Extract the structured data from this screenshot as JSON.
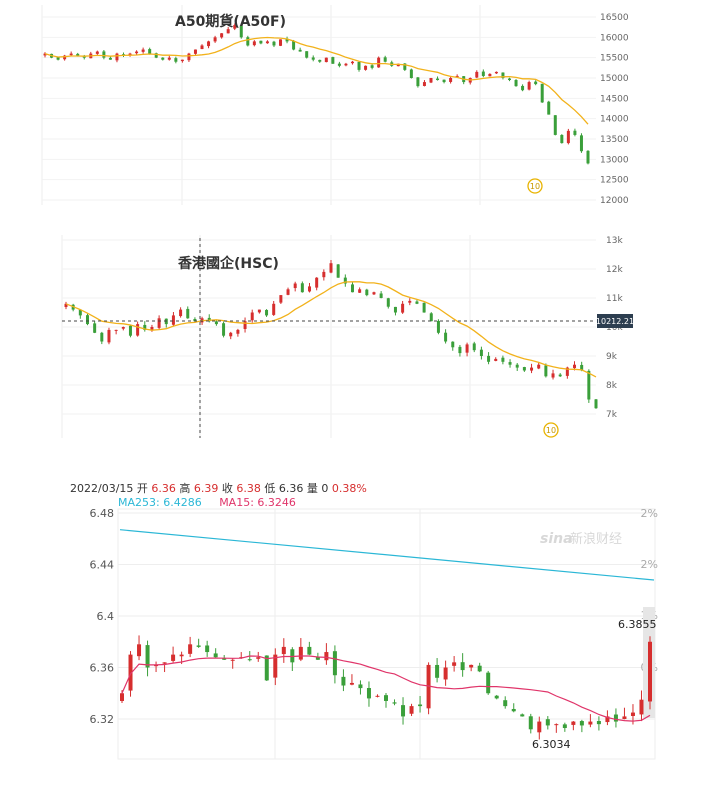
{
  "chart_data": [
    {
      "type": "candlestick",
      "title": "A50期貨(A50F)",
      "y_ticks": [
        "16500",
        "16000",
        "15500",
        "15000",
        "14500",
        "14000",
        "13500",
        "13000",
        "12500",
        "12000"
      ],
      "ylim": [
        12000,
        16500
      ],
      "ma_period_badge": "10",
      "series": [
        {
          "name": "close",
          "values": [
            15600,
            15500,
            15450,
            15550,
            15600,
            15550,
            15500,
            15600,
            15650,
            15500,
            15450,
            15600,
            15550,
            15600,
            15650,
            15700,
            15600,
            15500,
            15450,
            15500,
            15400,
            15450,
            15600,
            15700,
            15800,
            15900,
            16000,
            16100,
            16200,
            16300,
            16000,
            15800,
            15900,
            15850,
            15900,
            15800,
            15950,
            15900,
            15700,
            15650,
            15500,
            15450,
            15400,
            15500,
            15350,
            15300,
            15350,
            15400,
            15200,
            15300,
            15250,
            15500,
            15400,
            15300,
            15350,
            15200,
            15000,
            14800,
            14900,
            15000,
            14950,
            14900,
            15000,
            15050,
            14900,
            15000,
            15150,
            15050,
            15100,
            15150,
            15000,
            14950,
            14800,
            14700,
            14900,
            14850,
            14400,
            14100,
            13600,
            13400,
            13700,
            13600,
            13200,
            12900
          ]
        }
      ]
    },
    {
      "type": "candlestick",
      "title": "香港國企(HSC)",
      "y_ticks": [
        "13k",
        "12k",
        "11k",
        "10k",
        "9k",
        "8k",
        "7k"
      ],
      "ylim": [
        6500,
        13000
      ],
      "crosshair_value": "10212.21",
      "ma_period_badge": "10",
      "series": [
        {
          "name": "close",
          "values": [
            10800,
            10600,
            10400,
            10100,
            9800,
            9500,
            9900,
            9900,
            10000,
            9700,
            10100,
            9900,
            10000,
            10300,
            10100,
            10400,
            10600,
            10300,
            10200,
            10300,
            10200,
            10100,
            9700,
            9800,
            9900,
            10200,
            10500,
            10600,
            10400,
            10800,
            11100,
            11300,
            11500,
            11200,
            11400,
            11700,
            11900,
            12200,
            11700,
            11500,
            11200,
            11300,
            11100,
            11200,
            11000,
            10700,
            10500,
            10800,
            10900,
            10800,
            10500,
            10200,
            9800,
            9500,
            9300,
            9100,
            9400,
            9200,
            9000,
            8800,
            8900,
            8800,
            8700,
            8600,
            8500,
            8600,
            8700,
            8300,
            8400,
            8300,
            8600,
            8700,
            8500,
            7500,
            7200
          ]
        }
      ]
    },
    {
      "type": "candlestick",
      "date": "2022/03/15",
      "ohlc": {
        "open_label": "开",
        "open": "6.36",
        "high_label": "高",
        "high": "6.39",
        "close_label": "收",
        "close": "6.38",
        "low_label": "低",
        "low": "6.36",
        "volume_label": "量",
        "volume": "0",
        "change": "0.38%"
      },
      "ma253": "MA253: 6.4286",
      "ma15": "MA15: 6.3246",
      "y_ticks": [
        "6.48",
        "6.44",
        "6.4",
        "6.36",
        "6.32"
      ],
      "right_ticks": [
        "2%",
        "2%",
        "1%",
        "0%"
      ],
      "ylim": [
        6.29,
        6.48
      ],
      "max_label": "6.3855",
      "min_label": "6.3034",
      "watermark": "新浪财经",
      "ma253_values": [
        6.467,
        6.428
      ],
      "series": [
        {
          "name": "close",
          "values": [
            6.34,
            6.37,
            6.378,
            6.36,
            6.362,
            6.364,
            6.37,
            6.37,
            6.378,
            6.376,
            6.372,
            6.368,
            6.366,
            6.366,
            6.368,
            6.366,
            6.368,
            6.35,
            6.37,
            6.376,
            6.364,
            6.376,
            6.37,
            6.366,
            6.372,
            6.354,
            6.346,
            6.348,
            6.344,
            6.336,
            6.338,
            6.334,
            6.332,
            6.322,
            6.33,
            6.33,
            6.362,
            6.352,
            6.36,
            6.364,
            6.358,
            6.362,
            6.357,
            6.34,
            6.336,
            6.33,
            6.326,
            6.322,
            6.312,
            6.318,
            6.315,
            6.316,
            6.313,
            6.318,
            6.315,
            6.318,
            6.316,
            6.322,
            6.318,
            6.322,
            6.325,
            6.335,
            6.38
          ]
        }
      ]
    }
  ]
}
